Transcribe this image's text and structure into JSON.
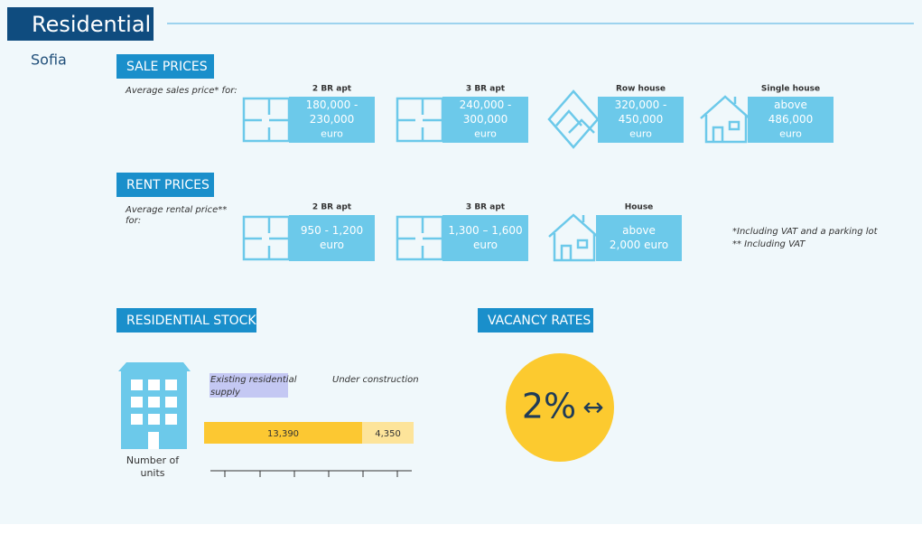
{
  "header": {
    "title": "Residential"
  },
  "city": "Sofia",
  "sale_prices": {
    "title": "SALE PRICES",
    "note": "Average sales price* for:",
    "items": [
      {
        "label": "2 BR apt",
        "lines": [
          "180,000 -",
          "230,000",
          "euro"
        ]
      },
      {
        "label": "3 BR apt",
        "lines": [
          "240,000 -",
          "300,000",
          "euro"
        ]
      },
      {
        "label": "Row house",
        "lines": [
          "320,000 -",
          "450,000",
          "euro"
        ]
      },
      {
        "label": "Single house",
        "lines": [
          "above",
          "486,000",
          "euro"
        ]
      }
    ]
  },
  "rent_prices": {
    "title": "RENT PRICES",
    "note": [
      "Average rental price**",
      "for:"
    ],
    "items": [
      {
        "label": "2 BR apt",
        "lines": [
          "950 - 1,200",
          "euro"
        ]
      },
      {
        "label": "3 BR apt",
        "lines": [
          "1,300 – 1,600",
          "euro"
        ]
      },
      {
        "label": "House",
        "lines": [
          "above",
          "2,000 euro"
        ]
      }
    ]
  },
  "footnotes": [
    "*Including VAT and a parking lot",
    "** Including VAT"
  ],
  "residential_stock": {
    "title": "RESIDENTIAL STOCK",
    "axis_label": [
      "Number of",
      "units"
    ],
    "series": [
      {
        "name": [
          "Existing residential",
          "supply"
        ],
        "color": "#fcc832",
        "value": 13390,
        "value_label": "13,390"
      },
      {
        "name": [
          "Under construction"
        ],
        "color": "#fde49a",
        "value": 4350,
        "value_label": "4,350"
      }
    ]
  },
  "vacancy_rates": {
    "title": "VACANCY RATES",
    "value": "2%",
    "trend": "↔"
  }
}
